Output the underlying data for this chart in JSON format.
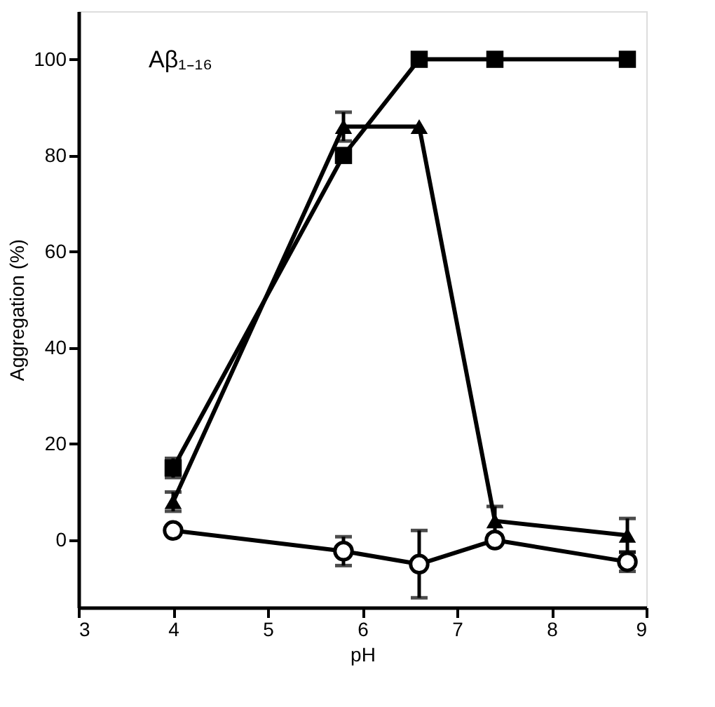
{
  "chart_data": {
    "type": "line",
    "xlabel": "pH",
    "ylabel": "Aggregation (%)",
    "annotations": [
      "Aβ₁₋₁₆"
    ],
    "x": [
      4,
      5.8,
      6.6,
      7.4,
      8.8
    ],
    "series": [
      {
        "color": "#000000",
        "marker": "square",
        "values": [
          15,
          80,
          100,
          100,
          100
        ],
        "errors": [
          2,
          null,
          null,
          null,
          null
        ]
      },
      {
        "color": "#000000",
        "marker": "triangle",
        "values": [
          8,
          86,
          86,
          4,
          1
        ],
        "errors": [
          2,
          3,
          null,
          3,
          3.5
        ]
      },
      {
        "color": "#000000",
        "marker": "circle",
        "values": [
          2,
          -2.3,
          -5,
          0,
          -4.5
        ],
        "errors": [
          null,
          3,
          7,
          null,
          2
        ]
      }
    ],
    "xlim": [
      3,
      9
    ],
    "xticks": [
      3,
      4,
      5,
      6,
      7,
      8,
      9
    ],
    "ylim": [
      -14,
      110
    ],
    "yticks": [
      0,
      20,
      40,
      60,
      80,
      100
    ],
    "grid": false,
    "line_style": "solid"
  }
}
